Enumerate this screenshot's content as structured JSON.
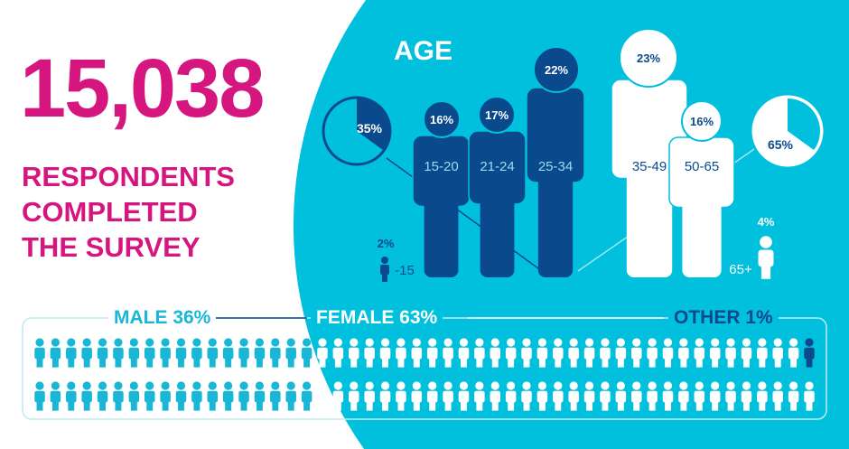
{
  "headline": {
    "count": "15,038",
    "lines": [
      "RESPONDENTS",
      "COMPLETED",
      "THE SURVEY"
    ]
  },
  "age": {
    "title": "AGE",
    "groups": [
      {
        "label": "-15",
        "pct": "2%",
        "value": 2
      },
      {
        "label": "15-20",
        "pct": "16%",
        "value": 16
      },
      {
        "label": "21-24",
        "pct": "17%",
        "value": 17
      },
      {
        "label": "25-34",
        "pct": "22%",
        "value": 22
      },
      {
        "label": "35-49",
        "pct": "23%",
        "value": 23
      },
      {
        "label": "50-65",
        "pct": "16%",
        "value": 16
      },
      {
        "label": "65+",
        "pct": "4%",
        "value": 4
      }
    ],
    "pie_young": {
      "pct": "35%",
      "value": 35
    },
    "pie_old": {
      "pct": "65%",
      "value": 65
    }
  },
  "gender": {
    "male": {
      "label": "MALE 36%",
      "value": 36
    },
    "female": {
      "label": "FEMALE 63%",
      "value": 63
    },
    "other": {
      "label": "OTHER 1%",
      "value": 1
    }
  },
  "colors": {
    "magenta": "#d6167f",
    "cyan": "#00c0de",
    "navy": "#0a4a8c",
    "light": "#1ab6d6",
    "white": "#ffffff"
  },
  "chart_data": {
    "type": "bar",
    "title": "AGE",
    "categories": [
      "-15",
      "15-20",
      "21-24",
      "25-34",
      "35-49",
      "50-65",
      "65+"
    ],
    "values": [
      2,
      16,
      17,
      22,
      23,
      16,
      4
    ],
    "unit": "%",
    "gender": {
      "categories": [
        "Male",
        "Female",
        "Other"
      ],
      "values": [
        36,
        63,
        1
      ]
    },
    "total_respondents": 15038
  }
}
